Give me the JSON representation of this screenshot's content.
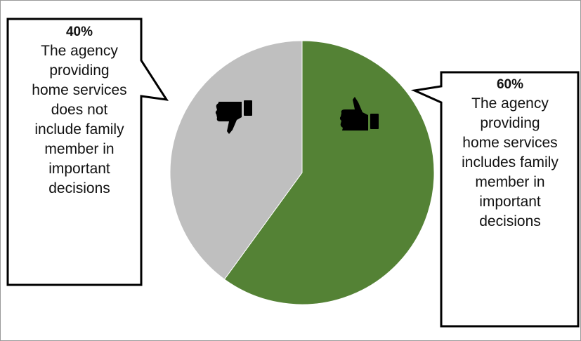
{
  "chart_data": {
    "type": "pie",
    "title": "",
    "slices": [
      {
        "label": "The agency providing home services includes family member in important decisions",
        "value": 60,
        "value_label": "60%",
        "color": "#548235",
        "icon": "thumbs-up-icon"
      },
      {
        "label": "The agency providing home services does not include family member in important decisions",
        "value": 40,
        "value_label": "40%",
        "color": "#bfbfbf",
        "icon": "thumbs-down-icon"
      }
    ],
    "start_angle": "12 o'clock",
    "direction": "clockwise",
    "legend": "none (callout boxes)"
  },
  "callouts": {
    "left": {
      "pct": "40%",
      "lines": [
        "The agency",
        "providing",
        "home services",
        "does not",
        "include family",
        "member in",
        "important",
        "decisions"
      ]
    },
    "right": {
      "pct": "60%",
      "lines": [
        "The agency",
        "providing",
        "home services",
        "includes family",
        "member in",
        "important",
        "decisions"
      ]
    }
  }
}
